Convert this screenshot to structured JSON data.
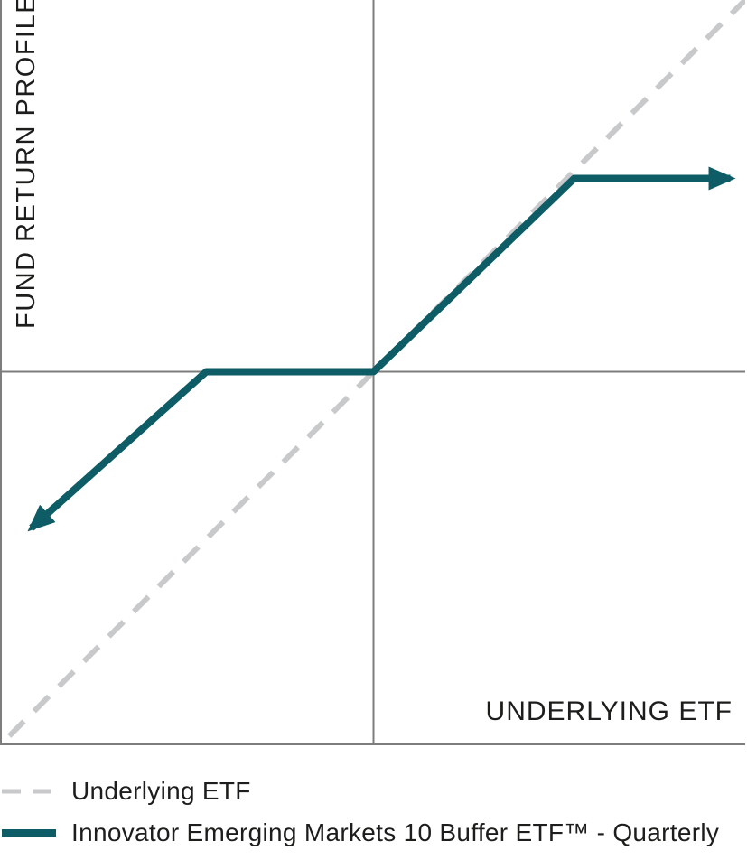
{
  "chart_data": {
    "type": "line",
    "title": "",
    "xlabel": "UNDERLYING ETF",
    "ylabel": "FUND RETURN PROFILE",
    "x_range": [
      -100,
      100
    ],
    "y_range": [
      -100,
      100
    ],
    "grid": false,
    "axes_color": "#7d7d7d",
    "legend_position": "bottom-left",
    "series": [
      {
        "name": "Underlying ETF",
        "style": "dashed",
        "color": "#c8c9ca",
        "stroke_width": 6,
        "arrows": false,
        "points": [
          [
            -98,
            -98
          ],
          [
            102,
            102
          ]
        ],
        "description": "1:1 reference line for the underlying ETF return"
      },
      {
        "name": "Innovator Emerging Markets 10 Buffer ETF™ - Quarterly",
        "style": "solid",
        "color": "#0e5c66",
        "stroke_width": 8,
        "arrows": true,
        "points": [
          [
            -92,
            -42
          ],
          [
            -45,
            0
          ],
          [
            0,
            0
          ],
          [
            54,
            52
          ],
          [
            96,
            52
          ]
        ],
        "description": "Fund return profile: 10% downside buffer (flat between -10% and 0%), 1:1 upside to cap, flat above cap"
      }
    ]
  }
}
